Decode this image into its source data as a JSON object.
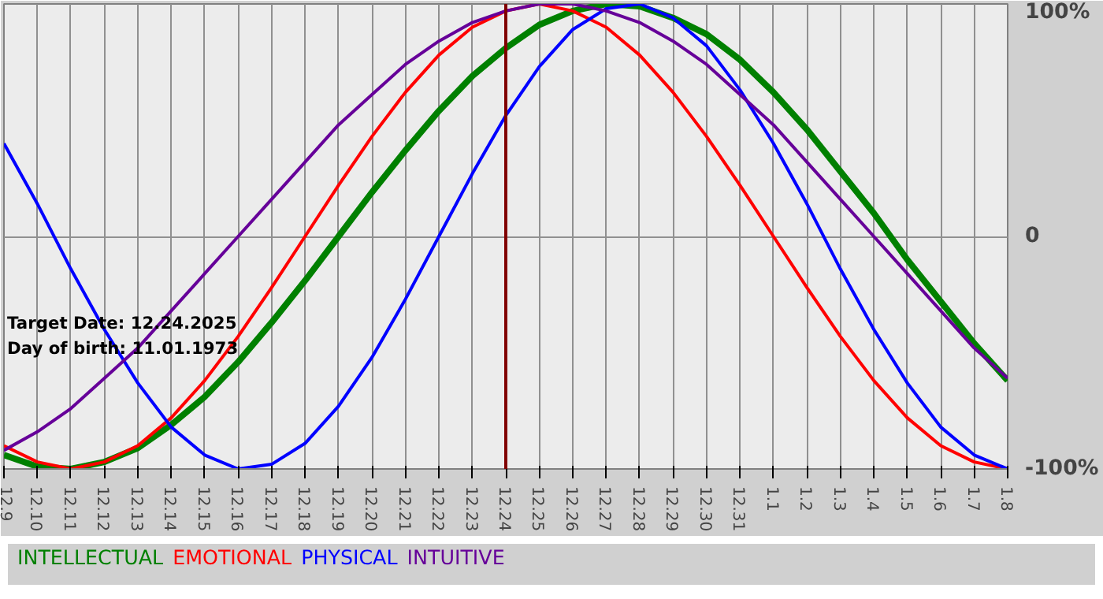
{
  "chart_data": {
    "type": "line",
    "categories": [
      "12.9",
      "12.10",
      "12.11",
      "12.12",
      "12.13",
      "12.14",
      "12.15",
      "12.16",
      "12.17",
      "12.18",
      "12.19",
      "12.20",
      "12.21",
      "12.22",
      "12.23",
      "12.24",
      "12.25",
      "12.26",
      "12.27",
      "12.28",
      "12.29",
      "12.30",
      "12.31",
      "1.1",
      "1.2",
      "1.3",
      "1.4",
      "1.5",
      "1.6",
      "1.7",
      "1.8"
    ],
    "series": [
      {
        "name": "INTELLECTUAL",
        "color": "#008000",
        "values": [
          -94,
          -99,
          -100,
          -97,
          -91,
          -81,
          -69,
          -54,
          -37,
          -19,
          0,
          19,
          37,
          54,
          69,
          81,
          91,
          97,
          100,
          99,
          94,
          87,
          76,
          62,
          46,
          28,
          10,
          -10,
          -28,
          -46,
          -62
        ]
      },
      {
        "name": "EMOTIONAL",
        "color": "#ff0000",
        "values": [
          -90,
          -97,
          -100,
          -97,
          -90,
          -78,
          -62,
          -43,
          -22,
          0,
          22,
          43,
          62,
          78,
          90,
          97,
          100,
          97,
          90,
          78,
          62,
          43,
          22,
          0,
          -22,
          -43,
          -62,
          -78,
          -90,
          -97,
          -100
        ]
      },
      {
        "name": "PHYSICAL",
        "color": "#0000ff",
        "values": [
          40,
          14,
          -14,
          -40,
          -63,
          -82,
          -94,
          -100,
          -98,
          -89,
          -73,
          -52,
          -27,
          0,
          27,
          52,
          73,
          89,
          98,
          100,
          94,
          82,
          63,
          40,
          14,
          -14,
          -40,
          -63,
          -82,
          -94,
          -100
        ]
      },
      {
        "name": "INTUITIVE",
        "color": "#660099",
        "values": [
          -92,
          -84,
          -74,
          -61,
          -48,
          -32,
          -16,
          0,
          16,
          32,
          48,
          61,
          74,
          84,
          92,
          97,
          100,
          100,
          97,
          92,
          84,
          74,
          61,
          48,
          32,
          16,
          0,
          -16,
          -32,
          -48,
          -61
        ]
      }
    ],
    "ylim": [
      -100,
      100
    ],
    "yticks": [
      {
        "value": -100,
        "label": "-100%"
      },
      0,
      {
        "value": 100,
        "label": "100%"
      }
    ],
    "ref_lines": [
      {
        "axis": "x",
        "value": "12.24",
        "color": "#800000"
      }
    ],
    "annotations": [
      "Target Date: 12.24.2025",
      "Day of birth: 11.01.1973"
    ],
    "grid": true,
    "legend": "bottom",
    "line_style": "solid"
  }
}
